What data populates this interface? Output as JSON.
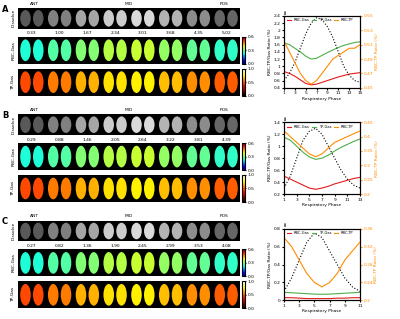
{
  "panels": [
    {
      "label": "A",
      "header": [
        "ANT",
        "MID",
        "POS"
      ],
      "row_labels": [
        "Dissolve",
        "RBC-Gas",
        "TP-Gas"
      ],
      "slice_values": [
        "0.33",
        "1.00",
        "1.67",
        "2.34",
        "3.01",
        "3.68",
        "4.35",
        "5.02"
      ]
    },
    {
      "label": "B",
      "header": [
        "ANT",
        "MID",
        "POS"
      ],
      "row_labels": [
        "Dissolve",
        "RBC-Gas",
        "TP-Gas"
      ],
      "slice_values": [
        "0.29",
        "0.88",
        "1.46",
        "2.05",
        "2.64",
        "3.22",
        "3.81",
        "4.39"
      ]
    },
    {
      "label": "C",
      "header": [
        "ANT",
        "MID",
        "POS"
      ],
      "row_labels": [
        "Dissolve",
        "RBC-Gas",
        "TP-Gas"
      ],
      "slice_values": [
        "0.27",
        "0.82",
        "1.36",
        "1.90",
        "2.45",
        "2.99",
        "3.53",
        "4.08"
      ]
    }
  ],
  "colorbars": {
    "RBC-Gas": {
      "lim": [
        0.0,
        0.6
      ],
      "ticks": [
        0.0,
        0.3,
        0.6
      ]
    },
    "TP-Gas": {
      "lim": [
        0.0,
        1.0
      ],
      "ticks": [
        0.0,
        0.5,
        1.0
      ]
    }
  },
  "chart_data": [
    {
      "type": "line",
      "title": "ii",
      "x_label": "Respiratory Phase",
      "y_label": "RBC-TP/Gas Ratio (%)",
      "y2_label": "RBC-TP Ratio (%)",
      "x": [
        1,
        2,
        3,
        4,
        5,
        6,
        7,
        8,
        9,
        10,
        11,
        12,
        13,
        14,
        15
      ],
      "xlim": [
        1,
        15
      ],
      "xticks": [
        1,
        3,
        5,
        7,
        9,
        11,
        13,
        15
      ],
      "ylim": [
        0.4,
        2.4
      ],
      "yticks": [
        0.4,
        0.6,
        0.8,
        1,
        1.2,
        1.4,
        1.6,
        1.8,
        2,
        2.2,
        2.4
      ],
      "y2lim": [
        0.45,
        0.55
      ],
      "y2ticks": [
        0.45,
        0.47,
        0.49,
        0.51,
        0.53,
        0.55
      ],
      "legend": "upper left",
      "series": [
        {
          "name": "RBC-Gas",
          "color": "#e41a1c",
          "values": [
            0.85,
            0.8,
            0.72,
            0.62,
            0.52,
            0.48,
            0.5,
            0.55,
            0.6,
            0.65,
            0.7,
            0.74,
            0.78,
            0.8,
            0.82
          ]
        },
        {
          "name": "TP-Gas",
          "color": "#4daf4a",
          "values": [
            1.65,
            1.6,
            1.5,
            1.4,
            1.28,
            1.2,
            1.22,
            1.3,
            1.38,
            1.45,
            1.52,
            1.58,
            1.62,
            1.66,
            1.68
          ]
        },
        {
          "name": "RBC-TP",
          "color": "#ff8c00",
          "axis": "y2",
          "values": [
            0.515,
            0.5,
            0.485,
            0.47,
            0.46,
            0.455,
            0.46,
            0.47,
            0.48,
            0.49,
            0.495,
            0.5,
            0.505,
            0.505,
            0.51
          ]
        },
        {
          "color": "#000000",
          "line_style": "dotted",
          "values": [
            0.6,
            0.8,
            1.1,
            1.5,
            1.9,
            2.2,
            2.35,
            2.3,
            2.1,
            1.8,
            1.4,
            1.0,
            0.75,
            0.6,
            0.55
          ]
        }
      ]
    },
    {
      "type": "line",
      "title": "ii",
      "x_label": "Respiratory Phase",
      "y_label": "RBC-TP/Gas Ratio (%)",
      "y2_label": "RBC-TP Ratio (%)",
      "x": [
        1,
        2,
        3,
        4,
        5,
        6,
        7,
        8,
        9,
        10,
        11,
        12,
        13
      ],
      "xlim": [
        1,
        13
      ],
      "xticks": [
        1,
        3,
        5,
        7,
        9,
        11,
        13
      ],
      "ylim": [
        0.2,
        1.4
      ],
      "yticks": [
        0.2,
        0.4,
        0.6,
        0.8,
        1,
        1.2,
        1.4
      ],
      "y2lim": [
        0.2,
        0.45
      ],
      "y2ticks": [
        0.2,
        0.25,
        0.3,
        0.35,
        0.4,
        0.45
      ],
      "legend": "upper left",
      "series": [
        {
          "name": "RBC-Gas",
          "color": "#e41a1c",
          "values": [
            0.5,
            0.45,
            0.4,
            0.35,
            0.3,
            0.28,
            0.3,
            0.33,
            0.37,
            0.4,
            0.43,
            0.46,
            0.48
          ]
        },
        {
          "name": "TP-Gas",
          "color": "#4daf4a",
          "values": [
            1.15,
            1.1,
            1.0,
            0.9,
            0.82,
            0.78,
            0.8,
            0.85,
            0.92,
            0.98,
            1.03,
            1.08,
            1.12
          ]
        },
        {
          "name": "RBC-TP",
          "color": "#ff8c00",
          "axis": "y2",
          "values": [
            0.42,
            0.4,
            0.38,
            0.36,
            0.34,
            0.33,
            0.34,
            0.36,
            0.38,
            0.39,
            0.4,
            0.41,
            0.42
          ]
        },
        {
          "color": "#000000",
          "line_style": "dotted",
          "values": [
            0.3,
            0.5,
            0.8,
            1.1,
            1.25,
            1.3,
            1.2,
            1.0,
            0.8,
            0.6,
            0.45,
            0.35,
            0.3
          ]
        }
      ]
    },
    {
      "type": "line",
      "title": "ii",
      "x_label": "Respiratory Phase",
      "y_label": "RBC-TP/Gas Ratio (%)",
      "y2_label": "RBC-TP Ratio (%)",
      "x": [
        1,
        2,
        3,
        4,
        5,
        6,
        7,
        8,
        9,
        10,
        11
      ],
      "xlim": [
        1,
        11
      ],
      "xticks": [
        1,
        3,
        5,
        7,
        9,
        11
      ],
      "ylim": [
        0,
        0.8
      ],
      "yticks": [
        0,
        0.2,
        0.4,
        0.6,
        0.8
      ],
      "y2lim": [
        0.2,
        0.36
      ],
      "y2ticks": [
        0.2,
        0.24,
        0.28,
        0.32,
        0.36
      ],
      "legend": "upper left",
      "series": [
        {
          "name": "RBC-Gas",
          "color": "#e41a1c",
          "values": [
            0.03,
            0.03,
            0.025,
            0.02,
            0.02,
            0.02,
            0.02,
            0.025,
            0.025,
            0.03,
            0.03
          ]
        },
        {
          "name": "TP-Gas",
          "color": "#4daf4a",
          "values": [
            0.09,
            0.085,
            0.08,
            0.075,
            0.07,
            0.068,
            0.07,
            0.075,
            0.08,
            0.085,
            0.09
          ]
        },
        {
          "name": "RBC-TP",
          "color": "#ff8c00",
          "axis": "y2",
          "values": [
            0.34,
            0.32,
            0.29,
            0.26,
            0.24,
            0.23,
            0.24,
            0.26,
            0.29,
            0.31,
            0.33
          ]
        },
        {
          "color": "#000000",
          "line_style": "dotted",
          "values": [
            0.1,
            0.25,
            0.45,
            0.65,
            0.75,
            0.7,
            0.55,
            0.4,
            0.25,
            0.15,
            0.1
          ]
        }
      ]
    }
  ]
}
